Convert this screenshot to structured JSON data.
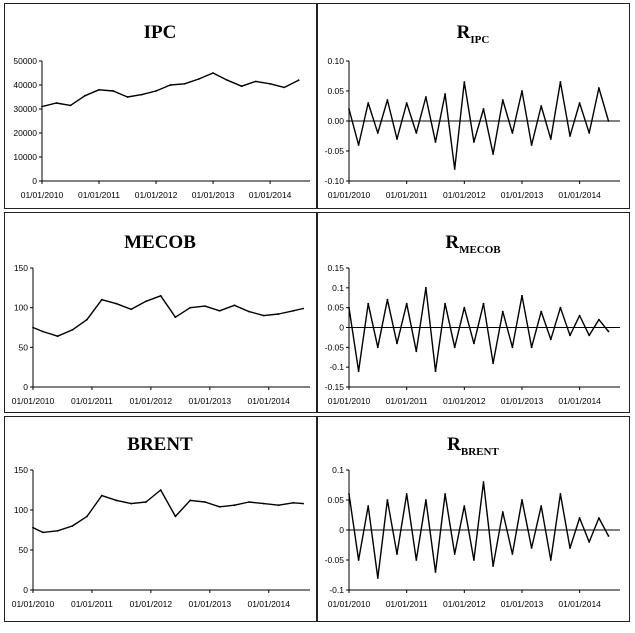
{
  "chart_data": [
    {
      "type": "line",
      "title": "IPC",
      "title_sub": "",
      "ylim": [
        0,
        50000
      ],
      "yticks": [
        "0",
        "10000",
        "20000",
        "30000",
        "40000",
        "50000"
      ],
      "ytick_values": [
        0,
        10000,
        20000,
        30000,
        40000,
        50000
      ],
      "xticks": [
        "01/01/2010",
        "01/01/2011",
        "01/01/2012",
        "01/01/2013",
        "01/01/2014"
      ],
      "zero_line": false,
      "series": [
        {
          "x": [
            "2010-01",
            "2010-04",
            "2010-07",
            "2010-10",
            "2011-01",
            "2011-04",
            "2011-07",
            "2011-10",
            "2012-01",
            "2012-04",
            "2012-07",
            "2012-10",
            "2013-01",
            "2013-04",
            "2013-07",
            "2013-10",
            "2014-01",
            "2014-04",
            "2014-07"
          ],
          "values": [
            31000,
            32500,
            31500,
            35500,
            38000,
            37500,
            35000,
            36000,
            37500,
            40000,
            40500,
            42500,
            45000,
            42000,
            39500,
            41500,
            40500,
            39000,
            42000
          ]
        }
      ]
    },
    {
      "type": "line",
      "title": "R",
      "title_sub": "IPC",
      "ylim": [
        -0.1,
        0.1
      ],
      "yticks": [
        "-0.10",
        "-0.05",
        "0.00",
        "0.05",
        "0.10"
      ],
      "ytick_values": [
        -0.1,
        -0.05,
        0,
        0.05,
        0.1
      ],
      "xticks": [
        "01/01/2010",
        "01/01/2011",
        "01/01/2012",
        "01/01/2013",
        "01/01/2014"
      ],
      "zero_line": true,
      "series": [
        {
          "x": [
            "2010-01",
            "2010-03",
            "2010-05",
            "2010-07",
            "2010-09",
            "2010-11",
            "2011-01",
            "2011-03",
            "2011-05",
            "2011-07",
            "2011-09",
            "2011-11",
            "2012-01",
            "2012-03",
            "2012-05",
            "2012-07",
            "2012-09",
            "2012-11",
            "2013-01",
            "2013-03",
            "2013-05",
            "2013-07",
            "2013-09",
            "2013-11",
            "2014-01",
            "2014-03",
            "2014-05",
            "2014-07"
          ],
          "values": [
            0.02,
            -0.04,
            0.03,
            -0.02,
            0.035,
            -0.03,
            0.03,
            -0.02,
            0.04,
            -0.035,
            0.045,
            -0.08,
            0.065,
            -0.035,
            0.02,
            -0.055,
            0.035,
            -0.02,
            0.05,
            -0.04,
            0.025,
            -0.03,
            0.065,
            -0.025,
            0.03,
            -0.02,
            0.055,
            0.0
          ]
        }
      ]
    },
    {
      "type": "line",
      "title": "MECOB",
      "title_sub": "",
      "ylim": [
        0,
        150
      ],
      "yticks": [
        "0",
        "50",
        "100",
        "150"
      ],
      "ytick_values": [
        0,
        50,
        100,
        150
      ],
      "xticks": [
        "01/01/2010",
        "01/01/2011",
        "01/01/2012",
        "01/01/2013",
        "01/01/2014"
      ],
      "zero_line": false,
      "series": [
        {
          "x": [
            "2010-01",
            "2010-03",
            "2010-06",
            "2010-09",
            "2010-12",
            "2011-03",
            "2011-06",
            "2011-09",
            "2011-12",
            "2012-03",
            "2012-06",
            "2012-09",
            "2012-12",
            "2013-03",
            "2013-06",
            "2013-09",
            "2013-12",
            "2014-03",
            "2014-06",
            "2014-08"
          ],
          "values": [
            75,
            70,
            64,
            72,
            85,
            110,
            105,
            98,
            108,
            115,
            88,
            100,
            102,
            96,
            103,
            95,
            90,
            92,
            96,
            99
          ]
        }
      ]
    },
    {
      "type": "line",
      "title": "R",
      "title_sub": "MECOB",
      "ylim": [
        -0.15,
        0.15
      ],
      "yticks": [
        "-0.15",
        "-0.1",
        "-0.05",
        "0",
        "0.05",
        "0.1",
        "0.15"
      ],
      "ytick_values": [
        -0.15,
        -0.1,
        -0.05,
        0,
        0.05,
        0.1,
        0.15
      ],
      "xticks": [
        "01/01/2010",
        "01/01/2011",
        "01/01/2012",
        "01/01/2013",
        "01/01/2014"
      ],
      "zero_line": true,
      "series": [
        {
          "x": [
            "2010-01",
            "2010-03",
            "2010-05",
            "2010-07",
            "2010-09",
            "2010-11",
            "2011-01",
            "2011-03",
            "2011-05",
            "2011-07",
            "2011-09",
            "2011-11",
            "2012-01",
            "2012-03",
            "2012-05",
            "2012-07",
            "2012-09",
            "2012-11",
            "2013-01",
            "2013-03",
            "2013-05",
            "2013-07",
            "2013-09",
            "2013-11",
            "2014-01",
            "2014-03",
            "2014-05",
            "2014-07"
          ],
          "values": [
            0.05,
            -0.11,
            0.06,
            -0.05,
            0.07,
            -0.04,
            0.06,
            -0.06,
            0.1,
            -0.11,
            0.06,
            -0.05,
            0.05,
            -0.04,
            0.06,
            -0.09,
            0.04,
            -0.05,
            0.08,
            -0.05,
            0.04,
            -0.03,
            0.05,
            -0.02,
            0.03,
            -0.02,
            0.02,
            -0.01
          ]
        }
      ]
    },
    {
      "type": "line",
      "title": "BRENT",
      "title_sub": "",
      "ylim": [
        0,
        150
      ],
      "yticks": [
        "0",
        "50",
        "100",
        "150"
      ],
      "ytick_values": [
        0,
        50,
        100,
        150
      ],
      "xticks": [
        "01/01/2010",
        "01/01/2011",
        "01/01/2012",
        "01/01/2013",
        "01/01/2014"
      ],
      "zero_line": false,
      "series": [
        {
          "x": [
            "2010-01",
            "2010-03",
            "2010-06",
            "2010-09",
            "2010-12",
            "2011-03",
            "2011-06",
            "2011-09",
            "2011-12",
            "2012-03",
            "2012-06",
            "2012-09",
            "2012-12",
            "2013-03",
            "2013-06",
            "2013-09",
            "2013-12",
            "2014-03",
            "2014-06",
            "2014-08"
          ],
          "values": [
            78,
            72,
            74,
            80,
            92,
            118,
            112,
            108,
            110,
            125,
            92,
            112,
            110,
            104,
            106,
            110,
            108,
            106,
            109,
            108
          ]
        }
      ]
    },
    {
      "type": "line",
      "title": "R",
      "title_sub": "BRENT",
      "ylim": [
        -0.1,
        0.1
      ],
      "yticks": [
        "-0.1",
        "-0.05",
        "0",
        "0.05",
        "0.1"
      ],
      "ytick_values": [
        -0.1,
        -0.05,
        0,
        0.05,
        0.1
      ],
      "xticks": [
        "01/01/2010",
        "01/01/2011",
        "01/01/2012",
        "01/01/2013",
        "01/01/2014"
      ],
      "zero_line": true,
      "series": [
        {
          "x": [
            "2010-01",
            "2010-03",
            "2010-05",
            "2010-07",
            "2010-09",
            "2010-11",
            "2011-01",
            "2011-03",
            "2011-05",
            "2011-07",
            "2011-09",
            "2011-11",
            "2012-01",
            "2012-03",
            "2012-05",
            "2012-07",
            "2012-09",
            "2012-11",
            "2013-01",
            "2013-03",
            "2013-05",
            "2013-07",
            "2013-09",
            "2013-11",
            "2014-01",
            "2014-03",
            "2014-05",
            "2014-07"
          ],
          "values": [
            0.06,
            -0.05,
            0.04,
            -0.08,
            0.05,
            -0.04,
            0.06,
            -0.05,
            0.05,
            -0.07,
            0.06,
            -0.04,
            0.04,
            -0.05,
            0.08,
            -0.06,
            0.03,
            -0.04,
            0.05,
            -0.03,
            0.04,
            -0.05,
            0.06,
            -0.03,
            0.02,
            -0.02,
            0.02,
            -0.01
          ]
        }
      ]
    }
  ]
}
